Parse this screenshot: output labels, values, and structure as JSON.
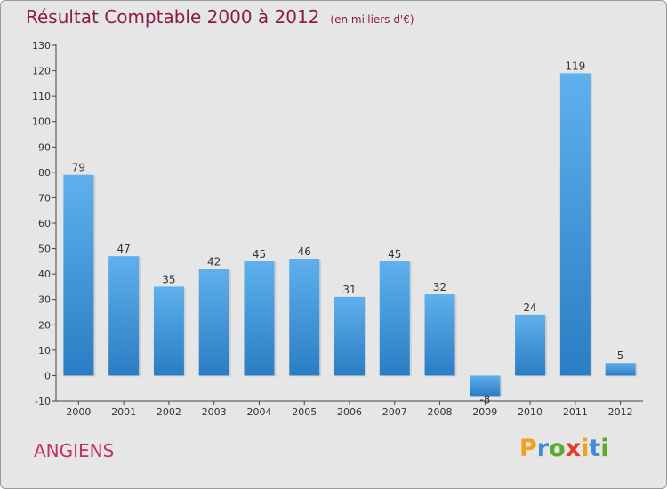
{
  "header": {
    "title": "Résultat Comptable 2000 à 2012",
    "unit": "(en milliers d'€)"
  },
  "footer": {
    "commune": "ANGIENS",
    "logo_letters": [
      "P",
      "r",
      "o",
      "x",
      "i",
      "t",
      "i"
    ],
    "logo_colors": [
      "#f0a21b",
      "#3f8bd6",
      "#5caa2e",
      "#e23a2c",
      "#f0a21b",
      "#3f8bd6",
      "#5caa2e"
    ]
  },
  "colors": {
    "bar": "#4a9ee0",
    "bar_dark": "#2b7dc4",
    "title": "#8b1a4e",
    "commune": "#c0306b",
    "background": "#e6e6e6"
  },
  "chart_data": {
    "type": "bar",
    "categories": [
      "2000",
      "2001",
      "2002",
      "2003",
      "2004",
      "2005",
      "2006",
      "2007",
      "2008",
      "2009",
      "2010",
      "2011",
      "2012"
    ],
    "values": [
      79,
      47,
      35,
      42,
      45,
      46,
      31,
      45,
      32,
      -8,
      24,
      119,
      5
    ],
    "data_labels": [
      "79",
      "47",
      "35",
      "42",
      "45",
      "46",
      "31",
      "45",
      "32",
      "-8",
      "24",
      "119",
      "5"
    ],
    "title": "Résultat Comptable 2000 à 2012",
    "ylabel": "",
    "xlabel": "",
    "ylim": [
      -10,
      130
    ],
    "yticks": [
      -10,
      0,
      10,
      20,
      30,
      40,
      50,
      60,
      70,
      80,
      90,
      100,
      110,
      120,
      130
    ],
    "ytick_labels": [
      "-10",
      "0",
      "10",
      "20",
      "30",
      "40",
      "50",
      "60",
      "70",
      "80",
      "90",
      "100",
      "110",
      "120",
      "130"
    ],
    "grid": false,
    "legend": "none"
  }
}
